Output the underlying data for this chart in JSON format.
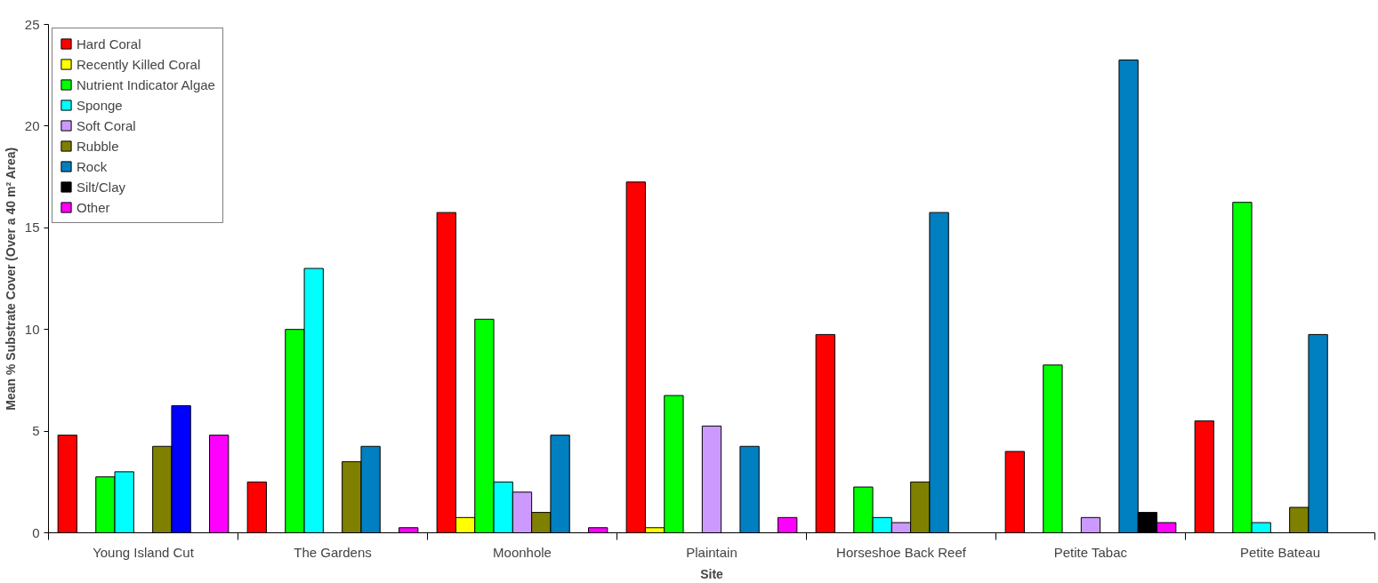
{
  "chart_data": {
    "type": "bar",
    "xlabel": "Site",
    "ylabel": "Mean % Substrate Cover (Over a 40 m² Area)",
    "categories": [
      "Young Island Cut",
      "The Gardens",
      "Moonhole",
      "Plaintain",
      "Horseshoe Back Reef",
      "Petite Tabac",
      "Petite Bateau"
    ],
    "series": [
      {
        "name": "Hard Coral",
        "color": "#ff0000",
        "values": [
          4.8,
          2.5,
          15.75,
          17.25,
          9.75,
          4.0,
          5.5
        ]
      },
      {
        "name": "Recently Killed Coral",
        "color": "#ffff00",
        "values": [
          null,
          null,
          0.75,
          0.25,
          null,
          null,
          null
        ]
      },
      {
        "name": "Nutrient Indicator Algae",
        "color": "#00ff00",
        "values": [
          2.75,
          10,
          10.5,
          6.75,
          2.25,
          8.25,
          16.25
        ]
      },
      {
        "name": "Sponge",
        "color": "#00ffff",
        "values": [
          3.0,
          13,
          2.5,
          null,
          0.75,
          null,
          0.5
        ]
      },
      {
        "name": "Soft Coral",
        "color": "#cc99ff",
        "values": [
          null,
          null,
          2.0,
          5.25,
          0.5,
          0.75,
          null
        ]
      },
      {
        "name": "Rubble",
        "color": "#808000",
        "values": [
          4.25,
          3.5,
          1.0,
          null,
          2.5,
          null,
          1.25
        ]
      },
      {
        "name": "Rock",
        "color": "#0080c0",
        "colors": [
          "#0000ff",
          "#0080c0",
          "#0080c0",
          "#0080c0",
          "#0080c0",
          "#0080c0",
          "#0080c0"
        ],
        "values": [
          6.25,
          4.25,
          4.8,
          4.25,
          15.75,
          23.25,
          9.75
        ]
      },
      {
        "name": "Silt/Clay",
        "color": "#000000",
        "values": [
          null,
          null,
          null,
          null,
          null,
          1.0,
          null
        ]
      },
      {
        "name": "Other",
        "color": "#ff00ff",
        "values": [
          4.8,
          0.25,
          0.25,
          0.75,
          null,
          0.5,
          null
        ]
      }
    ],
    "ylim": [
      0,
      25
    ],
    "yticks": [
      0,
      5,
      10,
      15,
      20,
      25
    ],
    "grid": false,
    "legend": "top left"
  }
}
